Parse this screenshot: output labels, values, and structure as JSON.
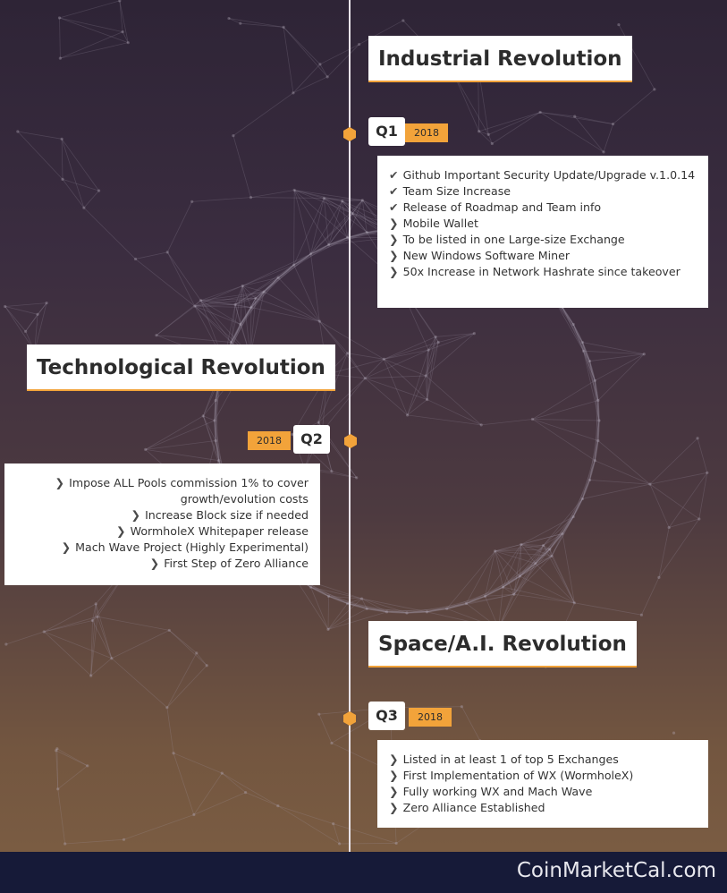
{
  "sections": [
    {
      "heading": "Industrial Revolution",
      "quarter": "Q1",
      "year": "2018",
      "items": [
        {
          "icon": "check-icon",
          "text": "Github Important Security Update/Upgrade v.1.0.14"
        },
        {
          "icon": "check-icon",
          "text": "Team Size Increase"
        },
        {
          "icon": "check-icon",
          "text": "Release of Roadmap and Team info"
        },
        {
          "icon": "chevron-right-icon",
          "text": "Mobile Wallet"
        },
        {
          "icon": "chevron-right-icon",
          "text": "To be listed in one Large-size Exchange"
        },
        {
          "icon": "chevron-right-icon",
          "text": "New Windows Software Miner"
        },
        {
          "icon": "chevron-right-icon",
          "text": "50x Increase in Network Hashrate since takeover"
        }
      ]
    },
    {
      "heading": "Technological Revolution",
      "quarter": "Q2",
      "year": "2018",
      "items": [
        {
          "icon": "chevron-right-icon",
          "text": "Impose ALL Pools commission 1% to cover growth/evolution costs"
        },
        {
          "icon": "chevron-right-icon",
          "text": "Increase Block size if needed"
        },
        {
          "icon": "chevron-right-icon",
          "text": "WormholeX Whitepaper release"
        },
        {
          "icon": "chevron-right-icon",
          "text": "Mach Wave Project (Highly Experimental)"
        },
        {
          "icon": "chevron-right-icon",
          "text": "First Step of Zero Alliance"
        }
      ]
    },
    {
      "heading": "Space/A.I. Revolution",
      "quarter": "Q3",
      "year": "2018",
      "items": [
        {
          "icon": "chevron-right-icon",
          "text": "Listed in at least 1 of top 5 Exchanges"
        },
        {
          "icon": "chevron-right-icon",
          "text": "First Implementation of WX (WormholeX)"
        },
        {
          "icon": "chevron-right-icon",
          "text": "Fully working WX and Mach Wave"
        },
        {
          "icon": "chevron-right-icon",
          "text": "Zero Alliance Established"
        }
      ]
    }
  ],
  "footer": {
    "brand": "CoinMarketCal.com"
  },
  "colors": {
    "accent": "#f2a33a",
    "footer_bg": "#161a38",
    "line": "#e9e4ea"
  }
}
